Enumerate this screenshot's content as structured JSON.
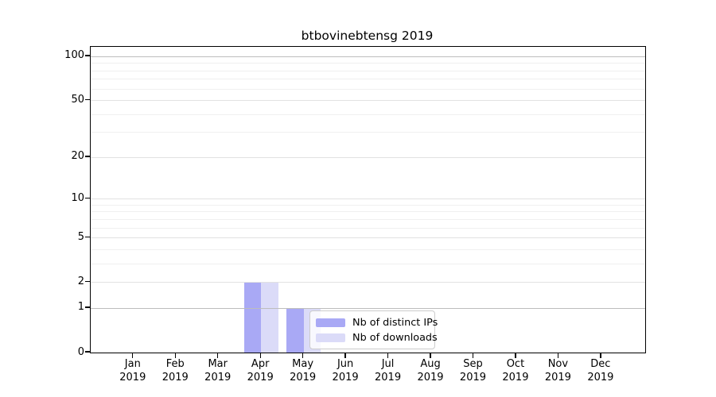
{
  "title": "btbovinebtensg 2019",
  "chart_data": {
    "type": "bar",
    "title": "btbovinebtensg 2019",
    "categories": [
      "Jan 2019",
      "Feb 2019",
      "Mar 2019",
      "Apr 2019",
      "May 2019",
      "Jun 2019",
      "Jul 2019",
      "Aug 2019",
      "Sep 2019",
      "Oct 2019",
      "Nov 2019",
      "Dec 2019"
    ],
    "x_tick_line1": [
      "Jan",
      "Feb",
      "Mar",
      "Apr",
      "May",
      "Jun",
      "Jul",
      "Aug",
      "Sep",
      "Oct",
      "Nov",
      "Dec"
    ],
    "x_tick_line2": [
      "2019",
      "2019",
      "2019",
      "2019",
      "2019",
      "2019",
      "2019",
      "2019",
      "2019",
      "2019",
      "2019",
      "2019"
    ],
    "series": [
      {
        "name": "Nb of distinct IPs",
        "color": "#a9a9f5",
        "values": [
          0,
          0,
          0,
          2,
          1,
          0,
          0,
          0,
          0,
          0,
          0,
          0
        ]
      },
      {
        "name": "Nb of downloads",
        "color": "#dbdbf8",
        "values": [
          0,
          0,
          0,
          2,
          1,
          0,
          0,
          0,
          0,
          0,
          0,
          0
        ]
      }
    ],
    "xlabel": "",
    "ylabel": "",
    "yscale": "log10(1+v)",
    "ylim": [
      0,
      115
    ],
    "y_tick_values": [
      0,
      1,
      2,
      5,
      10,
      20,
      50,
      100
    ],
    "y_tick_labels": [
      "0",
      "1",
      "2",
      "5",
      "10",
      "20",
      "50",
      "100"
    ],
    "y_minor_gridline_values": [
      3,
      4,
      6,
      7,
      8,
      9,
      30,
      40,
      60,
      70,
      80,
      90
    ],
    "y_strong_gridline_values": [
      1,
      100
    ],
    "grid": true,
    "legend_position": "lower-center-inside"
  },
  "legend": {
    "items": [
      {
        "label": "Nb of distinct IPs",
        "color": "#a9a9f5"
      },
      {
        "label": "Nb of downloads",
        "color": "#dbdbf8"
      }
    ]
  },
  "colors": {
    "axis": "#000000",
    "grid_strong": "#bdbdbd",
    "grid_major": "#e2e2e2",
    "grid_minor": "#f0f0f0",
    "background": "#ffffff",
    "legend_border": "#cccccc"
  }
}
